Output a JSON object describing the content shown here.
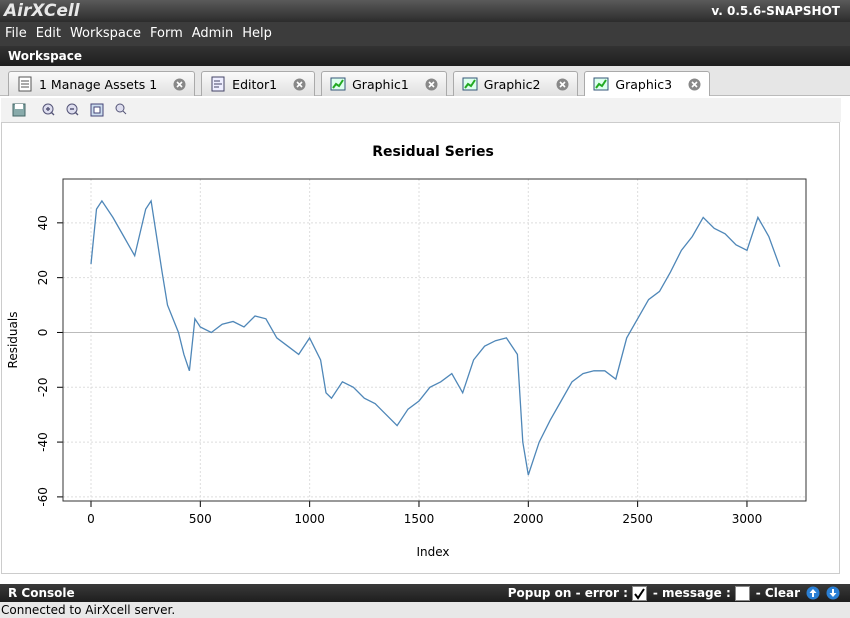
{
  "header": {
    "logo": "AirXCell",
    "version": "v. 0.5.6-SNAPSHOT"
  },
  "menu": [
    "File",
    "Edit",
    "Workspace",
    "Form",
    "Admin",
    "Help"
  ],
  "workspace": {
    "title": "Workspace",
    "tabs": [
      {
        "label": "1 Manage Assets 1",
        "icon": "doc"
      },
      {
        "label": "Editor1",
        "icon": "editor"
      },
      {
        "label": "Graphic1",
        "icon": "graph"
      },
      {
        "label": "Graphic2",
        "icon": "graph"
      },
      {
        "label": "Graphic3",
        "icon": "graph",
        "active": true
      }
    ],
    "toolbar": [
      "save",
      "zoom-in",
      "zoom-out",
      "fit",
      "actual-size"
    ]
  },
  "chart_data": {
    "type": "line",
    "title": "Residual Series",
    "x_label": "Index",
    "y_label": "Residuals",
    "x": [
      0,
      25,
      50,
      100,
      150,
      200,
      250,
      275,
      300,
      325,
      350,
      400,
      425,
      450,
      475,
      500,
      550,
      600,
      650,
      700,
      750,
      800,
      850,
      900,
      950,
      1000,
      1050,
      1075,
      1100,
      1150,
      1200,
      1250,
      1300,
      1350,
      1400,
      1450,
      1500,
      1550,
      1600,
      1650,
      1700,
      1750,
      1800,
      1850,
      1900,
      1950,
      1975,
      2000,
      2050,
      2100,
      2150,
      2200,
      2250,
      2300,
      2350,
      2400,
      2450,
      2500,
      2550,
      2600,
      2650,
      2700,
      2750,
      2800,
      2850,
      2900,
      2950,
      3000,
      3050,
      3100,
      3150
    ],
    "series": [
      {
        "name": "Residuals",
        "color": "#4f87b8",
        "values": [
          25,
          45,
          48,
          42,
          35,
          28,
          45,
          48,
          35,
          22,
          10,
          0,
          -8,
          -14,
          5,
          2,
          0,
          3,
          4,
          2,
          6,
          5,
          -2,
          -5,
          -8,
          -2,
          -10,
          -22,
          -24,
          -18,
          -20,
          -24,
          -26,
          -30,
          -34,
          -28,
          -25,
          -20,
          -18,
          -15,
          -22,
          -10,
          -5,
          -3,
          -2,
          -8,
          -40,
          -52,
          -40,
          -32,
          -25,
          -18,
          -15,
          -14,
          -14,
          -17,
          -2,
          5,
          12,
          15,
          22,
          30,
          35,
          42,
          38,
          36,
          32,
          30,
          42,
          35,
          24
        ]
      }
    ],
    "xlim": [
      -128,
      3270
    ],
    "ylim": [
      -61.5,
      56
    ],
    "xticks": [
      0,
      500,
      1000,
      1500,
      2000,
      2500,
      3000
    ],
    "yticks": [
      -60,
      -40,
      -20,
      0,
      20,
      40
    ],
    "hline": 0,
    "grid": true
  },
  "console": {
    "title": "R Console",
    "popup_label": "Popup on - error :",
    "message_label": "- message :",
    "clear_label": "- Clear",
    "error_checked": true,
    "message_checked": false
  },
  "status": "Connected to AirXcell server."
}
